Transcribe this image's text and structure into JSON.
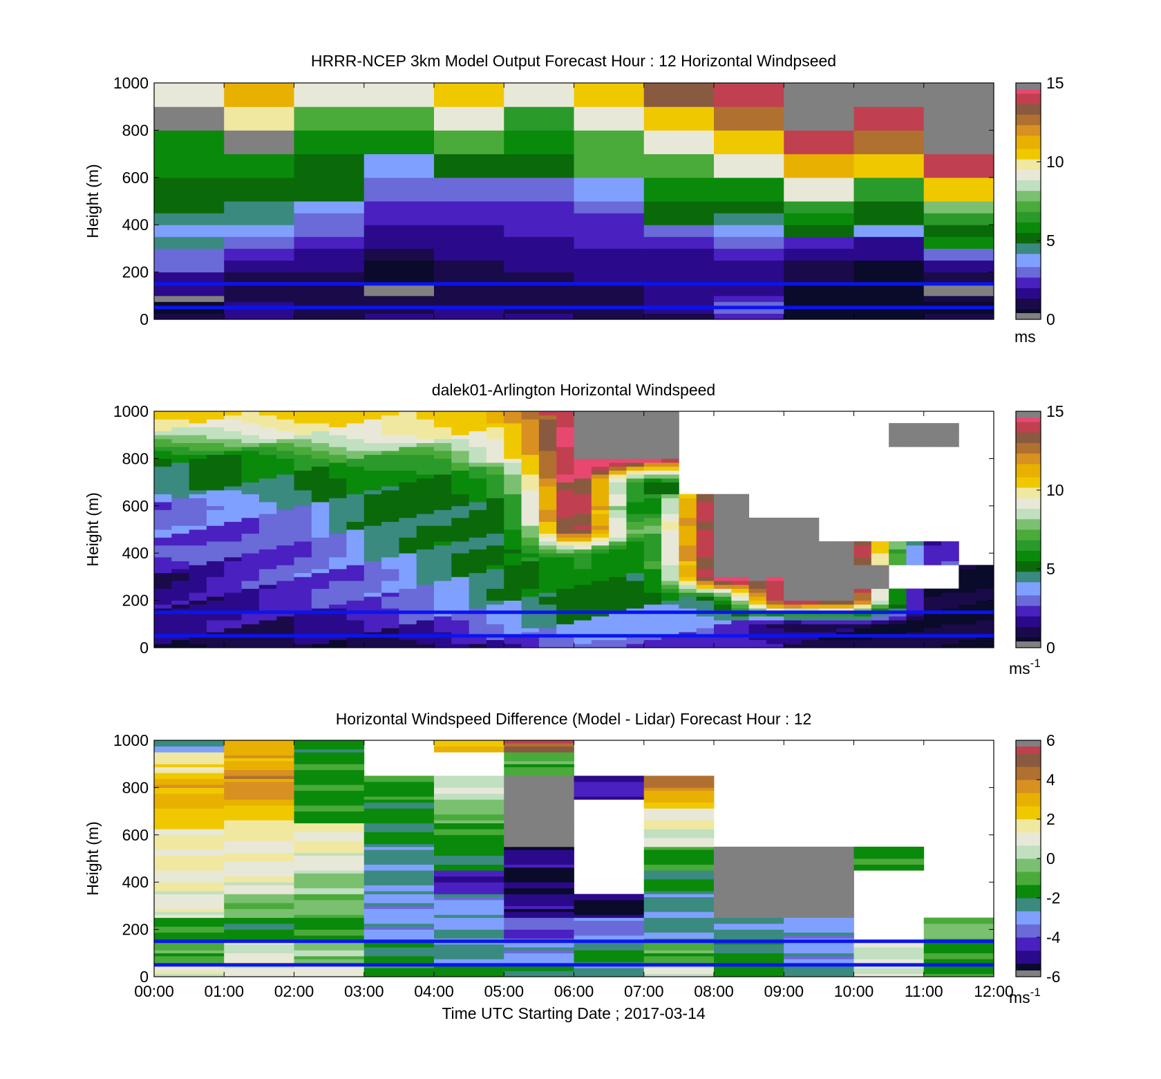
{
  "palettes": {
    "speed": [
      "#0a0a2a",
      "#1a0a4a",
      "#2a0a8a",
      "#4a20c0",
      "#6a6ad8",
      "#80a0ff",
      "#3a8a80",
      "#0a6a0a",
      "#0a8a0a",
      "#2a9a2a",
      "#4aaa3a",
      "#7ac070",
      "#c0e0c0",
      "#e8e8d8",
      "#f0e8a0",
      "#f0c800",
      "#e8b000",
      "#d89020",
      "#b07030",
      "#8a5a40",
      "#c04050",
      "#e84870",
      "#c01830",
      "#808080"
    ],
    "diff": [
      "#0a0a2a",
      "#2a0a8a",
      "#4a20c0",
      "#6a6ad8",
      "#80a0ff",
      "#3a8a80",
      "#0a8a0a",
      "#4aaa3a",
      "#7ac070",
      "#c0e0c0",
      "#e8e8d8",
      "#f0e8a0",
      "#f0c800",
      "#e8b000",
      "#d89020",
      "#b07030",
      "#8a5a40",
      "#c04050",
      "#e84870",
      "#808080"
    ]
  },
  "chart_data": [
    {
      "type": "heatmap",
      "title": "HRRR-NCEP 3km Model Output   Forecast Hour : 12 Horizontal Windpseed",
      "ylabel": "Height (m)",
      "ylim": [
        0,
        1000
      ],
      "yticks": [
        "0",
        "200",
        "400",
        "600",
        "800",
        "1000"
      ],
      "xlim": [
        0,
        12
      ],
      "colorbar": {
        "min": 0,
        "max": 15,
        "ticks": [
          "0",
          "5",
          "10",
          "15"
        ],
        "unit": "ms"
      },
      "rows": [
        0,
        25,
        50,
        75,
        100,
        150,
        200,
        250,
        300,
        350,
        400,
        450,
        500,
        550,
        600,
        700,
        800,
        900,
        1000
      ],
      "cells": [
        [
          0.8,
          1.8,
          1.2,
          1.5,
          1.6,
          1.5,
          1.2,
          1.0,
          2.5,
          0.3,
          0.6,
          0.8
        ],
        [
          0.6,
          1.5,
          1.0,
          1.2,
          1.4,
          1.3,
          1.0,
          1.5,
          2.8,
          0.2,
          0.4,
          0.5
        ],
        [
          0.3,
          1.5,
          0.9,
          1.0,
          1.3,
          1.2,
          1.1,
          1.8,
          3.0,
          0.2,
          0.3,
          0.6
        ],
        [
          15.0,
          1.2,
          0.8,
          0.9,
          1.2,
          1.1,
          1.0,
          1.6,
          2.5,
          0.5,
          0.3,
          0.8
        ],
        [
          1.8,
          1.0,
          0.7,
          15.0,
          1.0,
          1.0,
          1.3,
          1.4,
          1.8,
          0.6,
          0.4,
          15.0
        ],
        [
          2.0,
          1.3,
          1.0,
          0.5,
          1.2,
          1.2,
          1.5,
          1.4,
          1.6,
          0.8,
          0.5,
          1.2
        ],
        [
          2.8,
          1.8,
          1.5,
          0.4,
          1.3,
          1.4,
          1.8,
          1.6,
          1.8,
          1.2,
          0.6,
          1.8
        ],
        [
          3.3,
          2.2,
          2.0,
          0.9,
          1.5,
          1.6,
          2.0,
          2.0,
          2.4,
          2.0,
          1.5,
          3.0
        ],
        [
          4.2,
          3.0,
          2.4,
          1.5,
          1.8,
          2.0,
          2.2,
          2.6,
          3.0,
          2.5,
          2.0,
          5.5
        ],
        [
          4.0,
          3.5,
          3.0,
          1.8,
          2.0,
          2.2,
          2.4,
          3.2,
          3.5,
          5.0,
          3.5,
          4.8
        ],
        [
          4.4,
          4.2,
          3.4,
          2.2,
          2.2,
          2.4,
          2.6,
          4.8,
          4.5,
          5.5,
          4.8,
          6.2
        ],
        [
          4.8,
          4.4,
          3.6,
          2.6,
          2.4,
          2.5,
          2.8,
          5.0,
          5.0,
          6.5,
          5.2,
          7.5
        ],
        [
          5.0,
          4.8,
          4.8,
          2.8,
          2.9,
          2.9,
          3.5,
          5.6,
          5.8,
          9.2,
          6.2,
          10.5
        ],
        [
          5.2,
          5.2,
          5.0,
          3.0,
          3.0,
          3.0,
          3.8,
          5.8,
          5.8,
          9.0,
          6.5,
          10.5
        ],
        [
          5.6,
          5.6,
          5.4,
          3.8,
          5.4,
          5.2,
          7.2,
          7.0,
          9.5,
          11.5,
          10.5,
          14.0
        ],
        [
          6.0,
          15.0,
          5.8,
          5.6,
          7.0,
          5.6,
          7.2,
          9.0,
          10.5,
          14.0,
          12.5,
          15.0
        ],
        [
          15.0,
          9.8,
          7.0,
          7.4,
          9.0,
          6.8,
          9.2,
          10.8,
          12.5,
          15.0,
          14.0,
          15.0
        ],
        [
          9.0,
          11.5,
          9.0,
          9.2,
          10.5,
          9.0,
          10.8,
          13.5,
          14.0,
          15.0,
          15.0,
          15.0
        ]
      ],
      "lines": [
        150,
        50
      ]
    },
    {
      "type": "heatmap",
      "title": "dalek01-Arlington  Horizontal Windspeed",
      "ylabel": "Height (m)",
      "ylim": [
        0,
        1000
      ],
      "yticks": [
        "0",
        "200",
        "400",
        "600",
        "800",
        "1000"
      ],
      "xlim": [
        0,
        12
      ],
      "colorbar": {
        "min": 0,
        "max": 15,
        "ticks": [
          "0",
          "5",
          "10",
          "15"
        ],
        "unit": "ms",
        "unit_sup": "-1"
      },
      "lines": [
        150,
        50
      ],
      "profile_cols": 48,
      "profile_heights": [
        0,
        100,
        200,
        300,
        400,
        500,
        600,
        700,
        800,
        900,
        1000
      ],
      "profile_anchor_hours": [
        0,
        1,
        2,
        3,
        4,
        5,
        6,
        7,
        8,
        9,
        10,
        11,
        12
      ],
      "profiles": [
        [
          0.8,
          2.0,
          1.5,
          1.2,
          3.0,
          3.2,
          3.0,
          4.5,
          5.0,
          8.5,
          11.0
        ],
        [
          0.8,
          1.8,
          1.8,
          2.2,
          2.6,
          2.8,
          3.5,
          5.0,
          5.5,
          8.5,
          10.5
        ],
        [
          0.8,
          1.6,
          2.5,
          3.0,
          2.5,
          2.8,
          3.8,
          5.0,
          6.0,
          9.0,
          11.0
        ],
        [
          0.9,
          1.8,
          3.0,
          2.8,
          3.8,
          4.5,
          5.0,
          5.5,
          7.0,
          9.5,
          10.0
        ],
        [
          1.0,
          2.5,
          3.5,
          4.0,
          5.0,
          5.0,
          4.5,
          5.2,
          6.5,
          9.5,
          11.0
        ],
        [
          2.0,
          3.5,
          4.5,
          5.2,
          5.0,
          4.8,
          5.5,
          6.5,
          9.0,
          10.0,
          11.0
        ],
        [
          3.0,
          4.5,
          5.5,
          5.8,
          7.0,
          15.0,
          15.0,
          15.0,
          15.0,
          15.0,
          15.0
        ],
        [
          2.5,
          3.5,
          4.8,
          5.0,
          5.5,
          6.2,
          4.6,
          5.2,
          15.0,
          15.0,
          15.0
        ],
        [
          2.5,
          3.6,
          4.5,
          15.0,
          15.0,
          15.0,
          15.0,
          -1,
          -1,
          -1,
          -1
        ],
        [
          1.5,
          1.0,
          15.0,
          15.0,
          15.0,
          15.0,
          -1,
          -1,
          -1,
          -1,
          -1
        ],
        [
          1.0,
          0.8,
          15.0,
          15.0,
          15.0,
          -1,
          -1,
          -1,
          -1,
          -1,
          -1
        ],
        [
          0.6,
          0.8,
          0.7,
          -1,
          2.5,
          -1,
          -1,
          -1,
          -1,
          15.0,
          -1
        ],
        [
          0.8,
          0.6,
          0.5,
          0.4,
          -1,
          -1,
          -1,
          -1,
          -1,
          -1,
          -1
        ]
      ]
    },
    {
      "type": "heatmap",
      "title": "Horizontal Windspeed Difference (Model - Lidar) Forecast Hour : 12",
      "ylabel": "Height (m)",
      "xlabel": "Time UTC  Starting Date ; 2017-03-14",
      "ylim": [
        0,
        1000
      ],
      "yticks": [
        "0",
        "200",
        "400",
        "600",
        "800",
        "1000"
      ],
      "xlim": [
        0,
        12
      ],
      "xticks": [
        "00:00",
        "01:00",
        "02:00",
        "03:00",
        "04:00",
        "05:00",
        "06:00",
        "07:00",
        "08:00",
        "09:00",
        "10:00",
        "11:00",
        "12:00"
      ],
      "colorbar": {
        "min": -6,
        "max": 6,
        "ticks": [
          "-6",
          "-4",
          "-2",
          "0",
          "2",
          "4",
          "6"
        ],
        "unit": "ms",
        "unit_sup": "-1"
      },
      "lines": [
        150,
        50
      ],
      "profile_heights": [
        0,
        100,
        200,
        300,
        400,
        500,
        600,
        700,
        800,
        900,
        1000
      ],
      "profiles": [
        [
          1.0,
          -1.0,
          -1.5,
          1.0,
          1.2,
          1.5,
          1.5,
          2.5,
          3.0,
          1.5,
          -2.5
        ],
        [
          1.2,
          0.8,
          -1.8,
          -0.5,
          1.0,
          1.2,
          1.5,
          2.5,
          4.0,
          3.0,
          3.0
        ],
        [
          0.8,
          -0.3,
          -1.5,
          -0.5,
          -0.2,
          1.0,
          1.5,
          -1.5,
          -1.5,
          -1.5,
          -1.8
        ],
        [
          -1.5,
          -2.0,
          -3.0,
          -3.0,
          -2.5,
          -2.5,
          -2.0,
          -1.8,
          -1.5,
          -99,
          -99
        ],
        [
          -1.8,
          -2.5,
          -2.8,
          -3.0,
          -4.5,
          -2.0,
          -1.5,
          -0.5,
          0.5,
          -99,
          2.5
        ],
        [
          -2.0,
          -3.0,
          -4.0,
          -5.0,
          -5.5,
          -5.0,
          6.0,
          6.0,
          6.0,
          -1.0,
          5.0
        ],
        [
          -2.5,
          -2.0,
          -3.5,
          -5.5,
          -99,
          -99,
          -99,
          -99,
          -4.5,
          -99,
          -99
        ],
        [
          0.5,
          -1.0,
          -2.5,
          -2.5,
          -2.0,
          -1.5,
          0.8,
          1.5,
          4.0,
          -99,
          -99
        ],
        [
          -1.5,
          -2.0,
          -2.5,
          6.0,
          6.0,
          6.0,
          -99,
          -99,
          -99,
          -99,
          -99
        ],
        [
          -2.5,
          -3.0,
          -3.0,
          6.0,
          6.0,
          6.0,
          -99,
          -99,
          -99,
          -99,
          -99
        ],
        [
          1.0,
          0.5,
          -99,
          -99,
          -99,
          -1.5,
          -99,
          -99,
          -99,
          -99,
          -99
        ],
        [
          -1.5,
          -1.5,
          -0.5,
          -99,
          -99,
          -99,
          -99,
          -99,
          -99,
          -99,
          -99
        ]
      ]
    }
  ]
}
